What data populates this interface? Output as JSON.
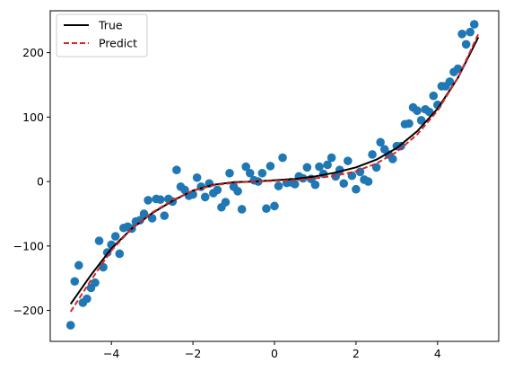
{
  "chart_data": {
    "type": "scatter",
    "title": "",
    "xlabel": "",
    "ylabel": "",
    "xlim": [
      -5.5,
      5.5
    ],
    "ylim": [
      -248,
      265
    ],
    "grid": false,
    "legend_position": "top-left",
    "x_ticks": [
      -4,
      -2,
      0,
      2,
      4
    ],
    "y_ticks": [
      -200,
      -100,
      0,
      100,
      200
    ],
    "x_tick_labels": [
      "−4",
      "−2",
      "0",
      "2",
      "4"
    ],
    "y_tick_labels": [
      "−200",
      "−100",
      "0",
      "100",
      "200"
    ],
    "scatter_color": "#1f77b4",
    "scatter_points": [
      [
        -5.0,
        -223
      ],
      [
        -4.9,
        -155
      ],
      [
        -4.8,
        -130
      ],
      [
        -4.7,
        -188
      ],
      [
        -4.6,
        -182
      ],
      [
        -4.5,
        -165
      ],
      [
        -4.4,
        -157
      ],
      [
        -4.3,
        -92
      ],
      [
        -4.2,
        -133
      ],
      [
        -4.1,
        -110
      ],
      [
        -4.0,
        -98
      ],
      [
        -3.9,
        -85
      ],
      [
        -3.8,
        -112
      ],
      [
        -3.7,
        -72
      ],
      [
        -3.6,
        -70
      ],
      [
        -3.5,
        -73
      ],
      [
        -3.4,
        -62
      ],
      [
        -3.3,
        -60
      ],
      [
        -3.2,
        -50
      ],
      [
        -3.1,
        -29
      ],
      [
        -3.0,
        -57
      ],
      [
        -2.9,
        -27
      ],
      [
        -2.8,
        -28
      ],
      [
        -2.7,
        -53
      ],
      [
        -2.6,
        -27
      ],
      [
        -2.5,
        -31
      ],
      [
        -2.4,
        18
      ],
      [
        -2.3,
        -8
      ],
      [
        -2.2,
        -13
      ],
      [
        -2.1,
        -22
      ],
      [
        -2.0,
        -20
      ],
      [
        -1.9,
        6
      ],
      [
        -1.8,
        -8
      ],
      [
        -1.7,
        -24
      ],
      [
        -1.6,
        -3
      ],
      [
        -1.5,
        -18
      ],
      [
        -1.4,
        -13
      ],
      [
        -1.3,
        -40
      ],
      [
        -1.2,
        -32
      ],
      [
        -1.1,
        13
      ],
      [
        -1.0,
        -8
      ],
      [
        -0.9,
        -15
      ],
      [
        -0.8,
        -43
      ],
      [
        -0.7,
        23
      ],
      [
        -0.6,
        13
      ],
      [
        -0.5,
        2
      ],
      [
        -0.4,
        0
      ],
      [
        -0.3,
        13
      ],
      [
        -0.2,
        -42
      ],
      [
        -0.1,
        24
      ],
      [
        0.0,
        -38
      ],
      [
        0.1,
        -7
      ],
      [
        0.2,
        37
      ],
      [
        0.3,
        -2
      ],
      [
        0.4,
        -1
      ],
      [
        0.5,
        -4
      ],
      [
        0.6,
        8
      ],
      [
        0.7,
        5
      ],
      [
        0.8,
        22
      ],
      [
        0.9,
        4
      ],
      [
        1.0,
        -5
      ],
      [
        1.1,
        23
      ],
      [
        1.2,
        12
      ],
      [
        1.3,
        26
      ],
      [
        1.4,
        37
      ],
      [
        1.5,
        8
      ],
      [
        1.6,
        18
      ],
      [
        1.7,
        -3
      ],
      [
        1.8,
        32
      ],
      [
        1.9,
        9
      ],
      [
        2.0,
        -12
      ],
      [
        2.1,
        15
      ],
      [
        2.2,
        3
      ],
      [
        2.3,
        0
      ],
      [
        2.4,
        42
      ],
      [
        2.5,
        22
      ],
      [
        2.6,
        61
      ],
      [
        2.7,
        50
      ],
      [
        2.8,
        42
      ],
      [
        2.9,
        35
      ],
      [
        3.0,
        55
      ],
      [
        3.1,
        55
      ],
      [
        3.2,
        89
      ],
      [
        3.3,
        90
      ],
      [
        3.4,
        115
      ],
      [
        3.5,
        110
      ],
      [
        3.6,
        95
      ],
      [
        3.7,
        112
      ],
      [
        3.8,
        108
      ],
      [
        3.9,
        133
      ],
      [
        4.0,
        119
      ],
      [
        4.1,
        148
      ],
      [
        4.2,
        148
      ],
      [
        4.3,
        155
      ],
      [
        4.4,
        170
      ],
      [
        4.5,
        175
      ],
      [
        4.6,
        229
      ],
      [
        4.7,
        213
      ],
      [
        4.8,
        232
      ],
      [
        4.9,
        244
      ]
    ],
    "series": [
      {
        "name": "True",
        "color": "#000000",
        "dash": "solid",
        "x": [
          -5.0,
          -4.5,
          -4.0,
          -3.5,
          -3.0,
          -2.5,
          -2.0,
          -1.5,
          -1.0,
          -0.5,
          0.0,
          0.5,
          1.0,
          1.5,
          2.0,
          2.5,
          3.0,
          3.5,
          4.0,
          4.5,
          5.0
        ],
        "y": [
          -190,
          -145,
          -104,
          -73,
          -49,
          -30,
          -14,
          -5,
          -1,
          0,
          2,
          4,
          8,
          14,
          22,
          34,
          52,
          78,
          113,
          161,
          224
        ]
      },
      {
        "name": "Predict",
        "color": "#d62728",
        "dash": "dashed",
        "x": [
          -5.0,
          -4.5,
          -4.0,
          -3.5,
          -3.0,
          -2.5,
          -2.0,
          -1.5,
          -1.0,
          -0.5,
          0.0,
          0.5,
          1.0,
          1.5,
          2.0,
          2.5,
          3.0,
          3.5,
          4.0,
          4.5,
          5.0
        ],
        "y": [
          -202,
          -153,
          -107,
          -73,
          -48,
          -29,
          -14,
          -6,
          -2,
          0,
          1,
          2,
          5,
          9,
          16,
          28,
          46,
          73,
          110,
          161,
          229
        ]
      }
    ]
  }
}
